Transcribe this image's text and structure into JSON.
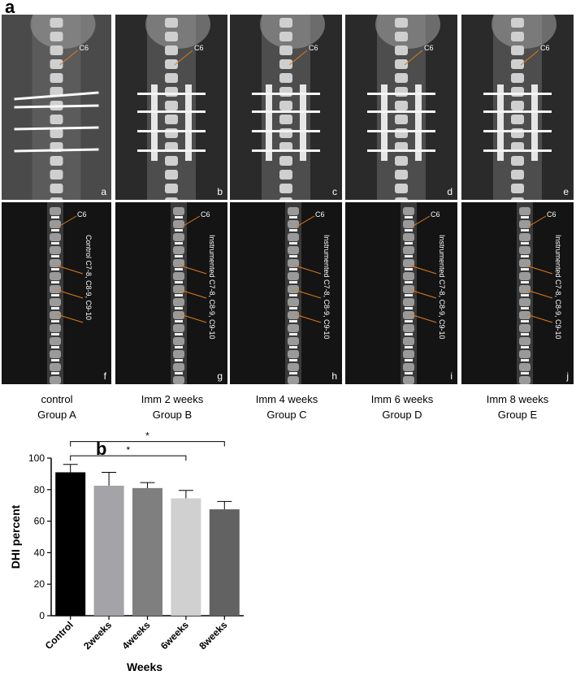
{
  "panel_a": {
    "letter": "a",
    "xray_tiles": [
      {
        "sublabel": "a",
        "vertebra_label": "C6",
        "instrumented": false
      },
      {
        "sublabel": "b",
        "vertebra_label": "C6",
        "instrumented": true
      },
      {
        "sublabel": "c",
        "vertebra_label": "C6",
        "instrumented": true
      },
      {
        "sublabel": "d",
        "vertebra_label": "C6",
        "instrumented": true
      },
      {
        "sublabel": "e",
        "vertebra_label": "C6",
        "instrumented": true
      }
    ],
    "mri_tiles": [
      {
        "sublabel": "f",
        "vertebra_label": "C6",
        "segment_label": "Control C7-8, C8-9, C9-10"
      },
      {
        "sublabel": "g",
        "vertebra_label": "C6",
        "segment_label": "Instrumented C7-8, C8-9, C9-10"
      },
      {
        "sublabel": "h",
        "vertebra_label": "C6",
        "segment_label": "Instrumented C7-8, C8-9, C9-10"
      },
      {
        "sublabel": "i",
        "vertebra_label": "C6",
        "segment_label": "Instrumented C7-8, C8-9, C9-10"
      },
      {
        "sublabel": "j",
        "vertebra_label": "C6",
        "segment_label": "Instrumented C7-8, C8-9, C9-10"
      }
    ],
    "captions": [
      {
        "line1": "control",
        "line2": "Group A"
      },
      {
        "line1": "Imm  2 weeks",
        "line2": "Group B"
      },
      {
        "line1": "Imm  4 weeks",
        "line2": "Group C"
      },
      {
        "line1": "Imm  6 weeks",
        "line2": "Group D"
      },
      {
        "line1": "Imm  8 weeks",
        "line2": "Group E"
      }
    ]
  },
  "panel_b": {
    "letter": "b"
  },
  "chart_data": {
    "type": "bar",
    "categories": [
      "Control",
      "2weeks",
      "4weeks",
      "6weeks",
      "8weeks"
    ],
    "values": [
      91,
      82.5,
      81,
      74.5,
      67.5
    ],
    "errors": [
      5,
      8.5,
      3.5,
      5,
      5
    ],
    "colors": [
      "#000000",
      "#a3a3a8",
      "#7f7f7f",
      "#d0d0d0",
      "#626262"
    ],
    "xlabel": "Weeks",
    "ylabel": "DHI percent",
    "ylim": [
      0,
      100
    ],
    "yticks": [
      0,
      20,
      40,
      60,
      80,
      100
    ],
    "grid": false,
    "significance": [
      {
        "from": "Control",
        "to": "6weeks",
        "label": "*"
      },
      {
        "from": "Control",
        "to": "8weeks",
        "label": "*"
      }
    ]
  }
}
